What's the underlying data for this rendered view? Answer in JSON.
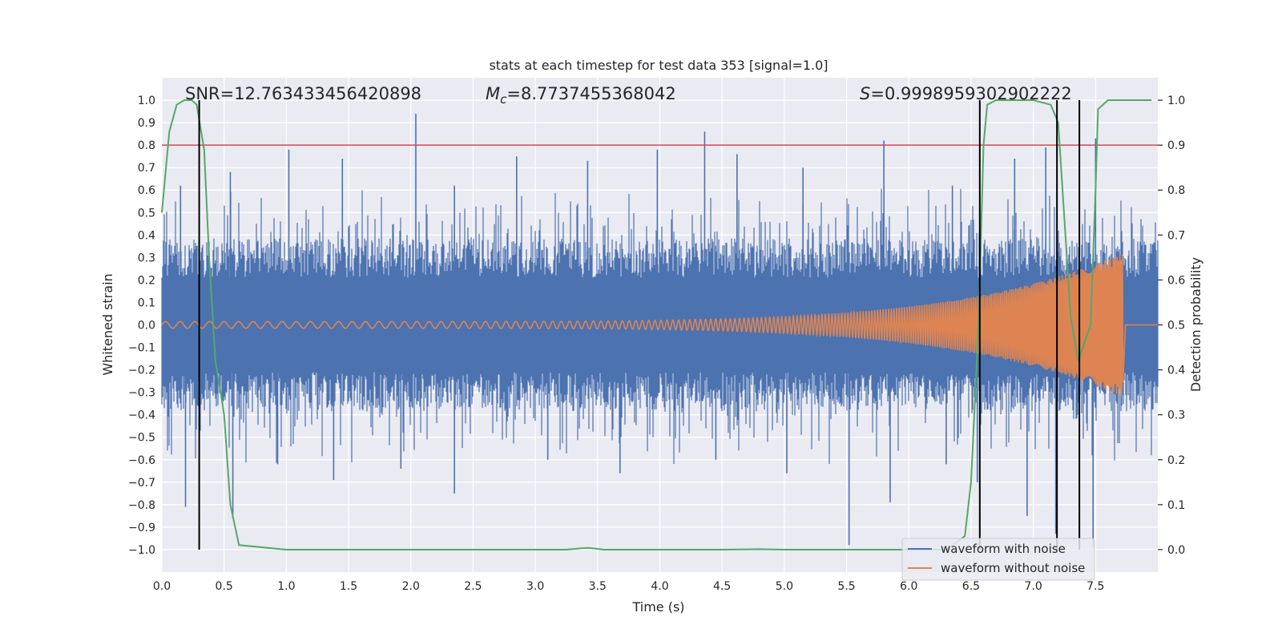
{
  "chart_data": {
    "type": "line",
    "title": "stats at each timestep for test data 353 [signal=1.0]",
    "xlabel": "Time (s)",
    "ylabel": "Whitened strain",
    "y2label": "Detection probability",
    "xlim": [
      0.0,
      8.0
    ],
    "ylim": [
      -1.1,
      1.1
    ],
    "y2lim": [
      -0.05,
      1.05
    ],
    "xticks": [
      "0.0",
      "0.5",
      "1.0",
      "1.5",
      "2.0",
      "2.5",
      "3.0",
      "3.5",
      "4.0",
      "4.5",
      "5.0",
      "5.5",
      "6.0",
      "6.5",
      "7.0",
      "7.5"
    ],
    "yticks": [
      "1.0",
      "0.9",
      "0.8",
      "0.7",
      "0.6",
      "0.5",
      "0.4",
      "0.3",
      "0.2",
      "0.1",
      "0.0",
      "−0.1",
      "−0.2",
      "−0.3",
      "−0.4",
      "−0.5",
      "−0.6",
      "−0.7",
      "−0.8",
      "−0.9",
      "−1.0"
    ],
    "y2ticks": [
      "1.0",
      "0.9",
      "0.8",
      "0.7",
      "0.6",
      "0.5",
      "0.4",
      "0.3",
      "0.2",
      "0.1",
      "0.0"
    ],
    "annotations": {
      "snr": "SNR=12.763433456420898",
      "mc_symbol": "M",
      "mc_sub": "c",
      "mc_value": "=8.7737455368042",
      "s_symbol": "S",
      "s_value": "=0.9998959302902222"
    },
    "threshold_line": {
      "y2": 0.9,
      "color": "#c44e52"
    },
    "vertical_markers_x": [
      0.3,
      6.57,
      7.19,
      7.37
    ],
    "series": [
      {
        "name": "waveform with noise",
        "color": "#4c72b0",
        "envelope_amplitude": 0.35,
        "peaks": [
          {
            "x": 0.15,
            "y": 0.62
          },
          {
            "x": 0.55,
            "y": 0.68
          },
          {
            "x": 1.02,
            "y": 0.78
          },
          {
            "x": 1.45,
            "y": 0.74
          },
          {
            "x": 2.04,
            "y": 0.94
          },
          {
            "x": 2.35,
            "y": 0.62
          },
          {
            "x": 2.85,
            "y": 0.75
          },
          {
            "x": 3.42,
            "y": 0.73
          },
          {
            "x": 3.98,
            "y": 0.78
          },
          {
            "x": 4.36,
            "y": 0.86
          },
          {
            "x": 4.62,
            "y": 0.76
          },
          {
            "x": 5.15,
            "y": 0.7
          },
          {
            "x": 5.8,
            "y": 0.82
          },
          {
            "x": 6.35,
            "y": 0.62
          },
          {
            "x": 6.85,
            "y": 0.74
          },
          {
            "x": 7.1,
            "y": 0.79
          },
          {
            "x": 7.5,
            "y": 0.83
          }
        ],
        "troughs": [
          {
            "x": 0.19,
            "y": -0.81
          },
          {
            "x": 0.57,
            "y": -0.86
          },
          {
            "x": 0.93,
            "y": -0.62
          },
          {
            "x": 1.38,
            "y": -0.69
          },
          {
            "x": 1.92,
            "y": -0.64
          },
          {
            "x": 2.35,
            "y": -0.75
          },
          {
            "x": 3.1,
            "y": -0.6
          },
          {
            "x": 3.68,
            "y": -0.66
          },
          {
            "x": 4.45,
            "y": -0.6
          },
          {
            "x": 5.02,
            "y": -0.66
          },
          {
            "x": 5.52,
            "y": -0.98
          },
          {
            "x": 5.85,
            "y": -0.79
          },
          {
            "x": 6.3,
            "y": -0.62
          },
          {
            "x": 6.55,
            "y": -0.7
          },
          {
            "x": 6.95,
            "y": -0.85
          },
          {
            "x": 7.18,
            "y": -0.93
          },
          {
            "x": 7.48,
            "y": -0.99
          }
        ]
      },
      {
        "name": "waveform without noise",
        "color": "#dd8452",
        "chirp": {
          "start": 0.0,
          "merger": 7.72,
          "amp_start": 0.015,
          "amp_peak": 0.32,
          "freq_start": 8.5,
          "freq_end": 95,
          "postmerger_level": 0.0
        }
      },
      {
        "name": "detection probability",
        "color": "#55a868",
        "axis": "y2",
        "x": [
          0.0,
          0.06,
          0.12,
          0.18,
          0.24,
          0.28,
          0.34,
          0.38,
          0.43,
          0.49,
          0.5,
          0.55,
          0.62,
          1.0,
          2.0,
          3.0,
          3.25,
          3.37,
          3.43,
          3.55,
          4.0,
          4.5,
          4.8,
          5.0,
          6.0,
          6.3,
          6.45,
          6.5,
          6.56,
          6.6,
          6.63,
          6.7,
          7.0,
          7.14,
          7.2,
          7.3,
          7.36,
          7.46,
          7.5,
          7.52,
          7.6,
          7.7,
          7.95
        ],
        "y": [
          0.75,
          0.93,
          0.99,
          1.0,
          1.0,
          0.99,
          0.89,
          0.65,
          0.42,
          0.32,
          0.3,
          0.1,
          0.01,
          0.0,
          0.0,
          0.0,
          0.0,
          0.003,
          0.004,
          0.0,
          0.0,
          0.0,
          0.001,
          0.0,
          0.0,
          0.0,
          0.03,
          0.15,
          0.5,
          0.9,
          0.99,
          1.0,
          1.0,
          0.99,
          0.95,
          0.52,
          0.42,
          0.5,
          0.8,
          0.98,
          1.0,
          1.0,
          1.0
        ]
      }
    ]
  }
}
